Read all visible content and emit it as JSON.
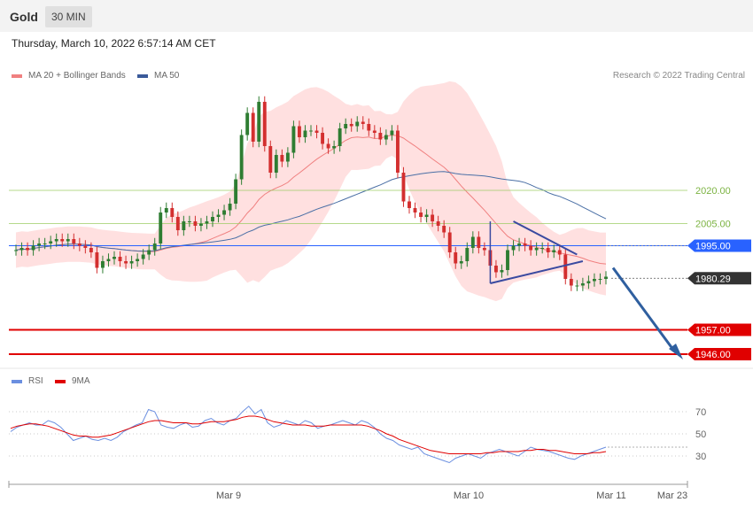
{
  "header": {
    "title": "Gold",
    "timeframe": "30 MIN"
  },
  "timestamp": "Thursday, March 10, 2022 6:57:14 AM CET",
  "copyright": "Research © 2022 Trading Central",
  "colors": {
    "up": "#2e7d32",
    "down": "#d32f2f",
    "ma20": "#f08080",
    "band": "#ffd6d6",
    "ma50": "#4a6fa5",
    "support": "#e00000",
    "pivot": "#2962ff",
    "rsi": "#6b8fe0",
    "rsi9ma": "#e00000"
  },
  "chart_data": [
    {
      "type": "candlestick",
      "legend": [
        {
          "label": "MA 20 + Bollinger Bands",
          "color": "#f08080"
        },
        {
          "label": "MA 50",
          "color": "#3a5a9a"
        }
      ],
      "x_tick_labels": [
        "Mar 9",
        "Mar 10",
        "Mar 11",
        "Mar 23"
      ],
      "levels": [
        {
          "label": "2020.00",
          "value": 2020.0,
          "style": "thin-green"
        },
        {
          "label": "2005.00",
          "value": 2005.0,
          "style": "thin-green"
        },
        {
          "label": "1995.00",
          "value": 1995.0,
          "style": "pivot-blue"
        },
        {
          "label": "1980.29",
          "value": 1980.29,
          "style": "last-price"
        },
        {
          "label": "1957.00",
          "value": 1957.0,
          "style": "support-red"
        },
        {
          "label": "1946.00",
          "value": 1946.0,
          "style": "support-red"
        }
      ],
      "y_range": [
        1940,
        2066
      ],
      "closes": [
        1993,
        1994,
        1993,
        1995,
        1996,
        1996,
        1997,
        1998,
        1997,
        1998,
        1996,
        1995,
        1994,
        1992,
        1985,
        1988,
        1989,
        1990,
        1988,
        1987,
        1988,
        1989,
        1991,
        1993,
        1996,
        2010,
        2012,
        2008,
        2002,
        2006,
        2006,
        2004,
        2005,
        2006,
        2008,
        2009,
        2011,
        2014,
        2025,
        2045,
        2055,
        2042,
        2060,
        2040,
        2028,
        2036,
        2033,
        2037,
        2049,
        2044,
        2047,
        2047,
        2046,
        2041,
        2039,
        2040,
        2048,
        2050,
        2049,
        2051,
        2050,
        2047,
        2046,
        2043,
        2045,
        2047,
        2028,
        2015,
        2012,
        2010,
        2008,
        2009,
        2006,
        2004,
        2001,
        1992,
        1987,
        1988,
        1994,
        1999,
        1994,
        1993,
        1986,
        1983,
        1984,
        1993,
        1995,
        1996,
        1995,
        1993,
        1994,
        1994,
        1992,
        1993,
        1991,
        1980,
        1977,
        1977,
        1978,
        1979,
        1980,
        1980,
        1981
      ]
    },
    {
      "type": "line",
      "legend": [
        {
          "label": "RSI",
          "color": "#6b8fe0"
        },
        {
          "label": "9MA",
          "color": "#e00000"
        }
      ],
      "y_tick_labels": [
        "70",
        "50",
        "30"
      ],
      "y_ticks": [
        70,
        50,
        30
      ],
      "y_range": [
        10,
        90
      ],
      "series": [
        {
          "name": "RSI",
          "values": [
            52,
            56,
            58,
            60,
            58,
            58,
            62,
            60,
            56,
            50,
            44,
            46,
            48,
            45,
            44,
            46,
            44,
            47,
            52,
            55,
            58,
            60,
            72,
            70,
            58,
            56,
            55,
            58,
            60,
            56,
            57,
            62,
            64,
            60,
            58,
            62,
            64,
            70,
            75,
            68,
            72,
            60,
            56,
            58,
            62,
            60,
            58,
            62,
            60,
            55,
            57,
            58,
            60,
            62,
            60,
            58,
            62,
            60,
            56,
            50,
            46,
            44,
            40,
            38,
            36,
            38,
            32,
            30,
            28,
            26,
            24,
            28,
            30,
            32,
            30,
            28,
            32,
            34,
            36,
            34,
            32,
            30,
            34,
            38,
            36,
            35,
            34,
            32,
            30,
            28,
            27,
            30,
            32,
            34,
            36,
            38
          ]
        },
        {
          "name": "9MA",
          "values": [
            55,
            57,
            58,
            59,
            59,
            58,
            57,
            55,
            53,
            51,
            49,
            48,
            48,
            47,
            47,
            48,
            49,
            51,
            53,
            55,
            57,
            59,
            61,
            62,
            62,
            61,
            60,
            60,
            60,
            59,
            59,
            60,
            61,
            61,
            61,
            62,
            63,
            65,
            66,
            66,
            65,
            63,
            61,
            60,
            59,
            58,
            58,
            58,
            57,
            57,
            57,
            58,
            58,
            58,
            58,
            58,
            58,
            57,
            55,
            53,
            50,
            48,
            45,
            43,
            41,
            39,
            37,
            35,
            34,
            33,
            32,
            32,
            32,
            32,
            32,
            32,
            33,
            33,
            34,
            34,
            34,
            34,
            35,
            35,
            36,
            36,
            35,
            35,
            34,
            33,
            32,
            32,
            32,
            33,
            33,
            34
          ]
        }
      ]
    }
  ]
}
